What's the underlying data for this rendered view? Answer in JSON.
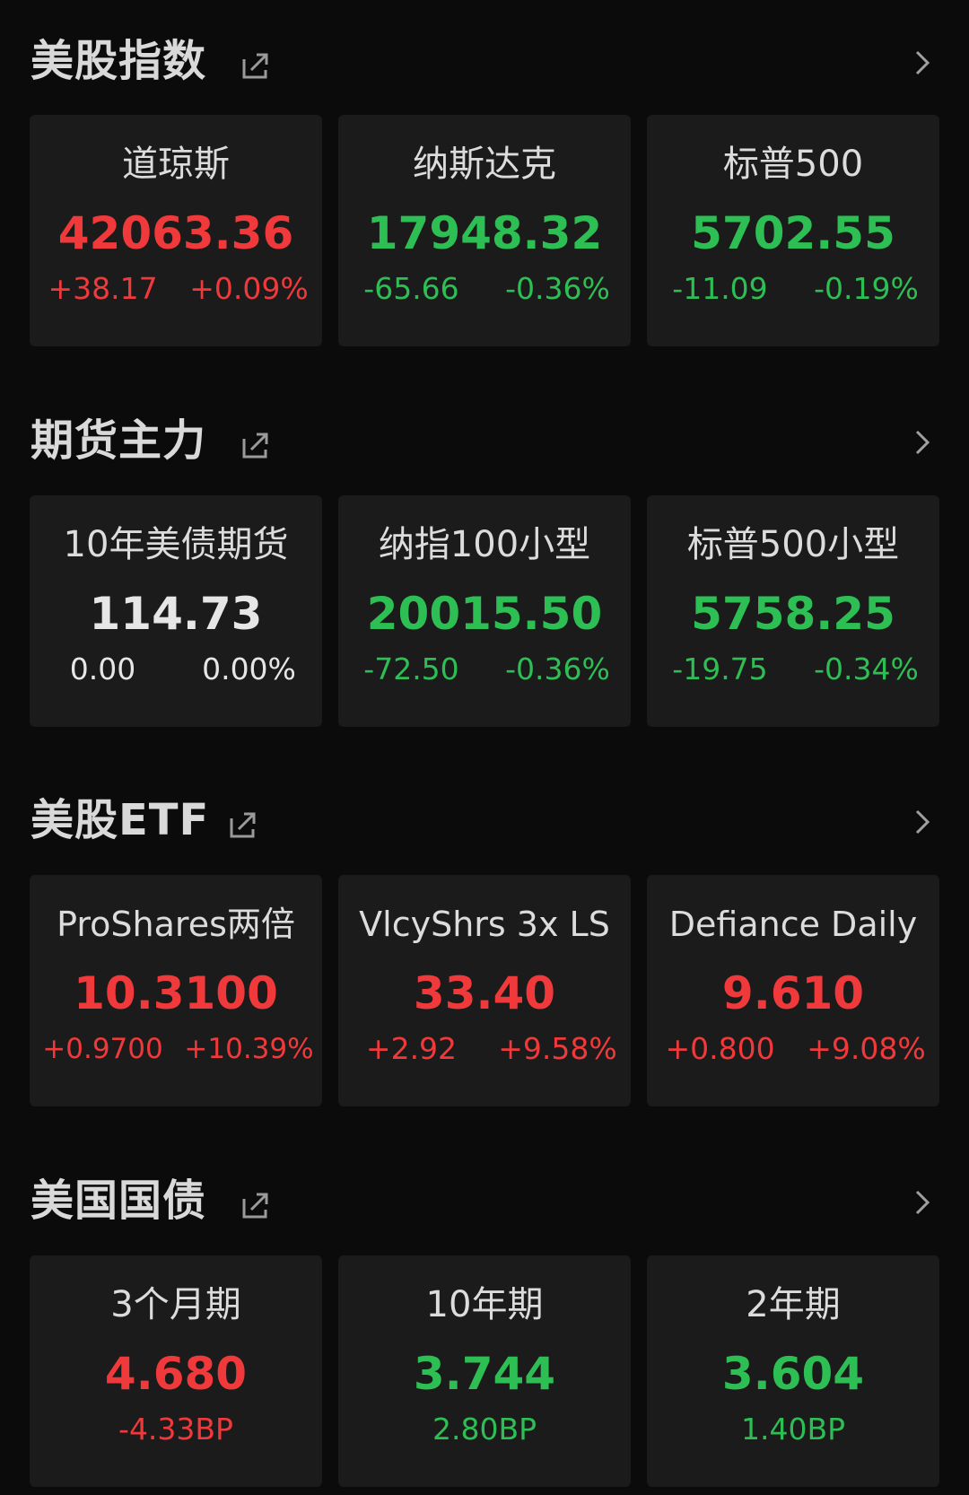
{
  "colors": {
    "up": "#f0393b",
    "down": "#2dbf54",
    "flat": "#e6e6e6",
    "background": "#0b0b0b",
    "card": "#1b1b1b"
  },
  "sections": [
    {
      "title": "美股指数",
      "icon": "share-icon",
      "cards": [
        {
          "name": "道琼斯",
          "price": "42063.36",
          "change": "+38.17",
          "pct": "+0.09%",
          "dir": "up"
        },
        {
          "name": "纳斯达克",
          "price": "17948.32",
          "change": "-65.66",
          "pct": "-0.36%",
          "dir": "down"
        },
        {
          "name": "标普500",
          "price": "5702.55",
          "change": "-11.09",
          "pct": "-0.19%",
          "dir": "down"
        }
      ]
    },
    {
      "title": "期货主力",
      "icon": "share-icon",
      "cards": [
        {
          "name": "10年美债期货",
          "price": "114.73",
          "change": "0.00",
          "pct": "0.00%",
          "dir": "flat"
        },
        {
          "name": "纳指100小型",
          "price": "20015.50",
          "change": "-72.50",
          "pct": "-0.36%",
          "dir": "down"
        },
        {
          "name": "标普500小型",
          "price": "5758.25",
          "change": "-19.75",
          "pct": "-0.34%",
          "dir": "down"
        }
      ]
    },
    {
      "title": "美股ETF",
      "icon": "share-icon",
      "cards": [
        {
          "name": "ProShares两倍",
          "price": "10.3100",
          "change": "+0.9700",
          "pct": "+10.39%",
          "dir": "up"
        },
        {
          "name": "VlcyShrs 3x LS",
          "price": "33.40",
          "change": "+2.92",
          "pct": "+9.58%",
          "dir": "up"
        },
        {
          "name": "Defiance Daily",
          "price": "9.610",
          "change": "+0.800",
          "pct": "+9.08%",
          "dir": "up"
        }
      ]
    },
    {
      "title": "美国国债",
      "icon": "share-icon",
      "cards": [
        {
          "name": "3个月期",
          "price": "4.680",
          "bp": "-4.33BP",
          "dir": "up"
        },
        {
          "name": "10年期",
          "price": "3.744",
          "bp": "2.80BP",
          "dir": "down"
        },
        {
          "name": "2年期",
          "price": "3.604",
          "bp": "1.40BP",
          "dir": "down"
        }
      ]
    }
  ]
}
